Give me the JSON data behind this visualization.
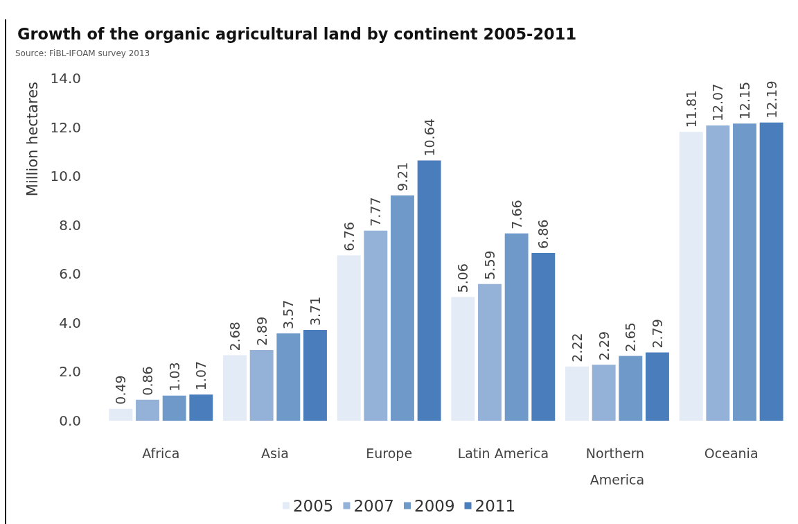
{
  "chart_data": {
    "type": "bar",
    "title": "Growth of the organic agricultural land by continent 2005-2011",
    "annotations": [
      "Source: FiBL-IFOAM survey 2013"
    ],
    "ylabel": "Million hectares",
    "categories": [
      "Africa",
      "Asia",
      "Europe",
      "Latin America",
      "Northern America",
      "Oceania"
    ],
    "series": [
      {
        "name": "2005",
        "color": "#e3ebf6",
        "values": [
          0.49,
          2.68,
          6.76,
          5.06,
          2.22,
          11.81
        ]
      },
      {
        "name": "2007",
        "color": "#94b1d8",
        "values": [
          0.86,
          2.89,
          7.77,
          5.59,
          2.29,
          12.07
        ]
      },
      {
        "name": "2009",
        "color": "#6f99c9",
        "values": [
          1.03,
          3.57,
          9.21,
          7.66,
          2.65,
          12.15
        ]
      },
      {
        "name": "2011",
        "color": "#4a7dbc",
        "values": [
          1.07,
          3.71,
          10.64,
          6.86,
          2.79,
          12.19
        ]
      }
    ],
    "ylim": [
      0,
      14
    ],
    "yticks": [
      {
        "value": 0,
        "label": "0.0"
      },
      {
        "value": 2,
        "label": "2.0"
      },
      {
        "value": 4,
        "label": "4.0"
      },
      {
        "value": 6,
        "label": "6.0"
      },
      {
        "value": 8,
        "label": "8.0"
      },
      {
        "value": 10,
        "label": "10.0"
      },
      {
        "value": 12,
        "label": "12.0"
      },
      {
        "value": 14,
        "label": "14.0"
      }
    ],
    "data_labels": true,
    "legend": "bottom"
  }
}
